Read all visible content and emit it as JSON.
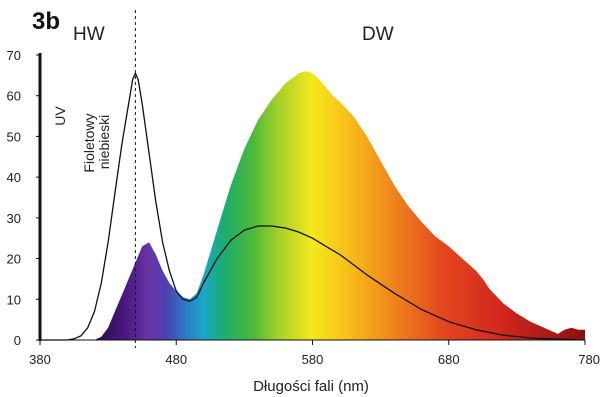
{
  "chart_data": {
    "type": "area",
    "panel_label": "3b",
    "xlabel": "Długości fali (nm)",
    "ylabel": "",
    "xlim": [
      380,
      780
    ],
    "ylim": [
      0,
      70
    ],
    "x_ticks": [
      380,
      480,
      580,
      680,
      780
    ],
    "y_ticks": [
      0,
      10,
      20,
      30,
      40,
      50,
      60,
      70
    ],
    "grid": false,
    "region_labels": [
      "HW",
      "DW"
    ],
    "band_labels": [
      "UV",
      "Fioletowy",
      "niebieski"
    ],
    "divider_x": 450,
    "series": [
      {
        "style": "spectrum-fill",
        "x": [
          420,
          425,
          430,
          435,
          440,
          445,
          450,
          455,
          460,
          465,
          470,
          475,
          480,
          485,
          490,
          495,
          500,
          510,
          520,
          530,
          540,
          550,
          560,
          570,
          575,
          580,
          585,
          590,
          595,
          600,
          610,
          620,
          630,
          640,
          650,
          660,
          670,
          680,
          690,
          700,
          705,
          710,
          720,
          730,
          740,
          750,
          760,
          765,
          770,
          775,
          780
        ],
        "values": [
          0,
          0.8,
          3,
          7,
          11,
          15,
          19,
          23,
          24,
          21,
          17,
          14,
          12,
          10.5,
          10,
          11.5,
          16,
          27,
          38,
          47,
          54,
          59,
          63,
          65.5,
          66,
          65.5,
          64,
          62,
          60,
          58.5,
          55,
          50,
          44,
          38,
          33,
          29,
          25.5,
          23,
          20,
          17,
          15,
          12.5,
          9,
          6.5,
          4.5,
          3,
          1.5,
          2.5,
          3,
          2.5,
          2.5
        ]
      },
      {
        "style": "line",
        "x": [
          380,
          395,
          400,
          405,
          410,
          415,
          420,
          425,
          430,
          435,
          440,
          445,
          448,
          450,
          452,
          455,
          460,
          465,
          470,
          475,
          480,
          485,
          490,
          495,
          500,
          510,
          520,
          530,
          540,
          550,
          560,
          570,
          580,
          590,
          600,
          620,
          640,
          660,
          680,
          700,
          720,
          740,
          760,
          780
        ],
        "values": [
          0,
          0,
          0,
          0.3,
          1,
          3,
          7,
          14,
          24,
          36,
          48,
          58,
          64,
          65.5,
          64,
          58,
          46,
          34,
          24,
          17,
          12,
          10,
          9.5,
          10.5,
          14,
          20,
          24.5,
          27,
          28,
          28,
          27.5,
          26.5,
          25,
          23,
          21,
          16,
          11.5,
          7.5,
          4.5,
          2.5,
          1.2,
          0.5,
          0.2,
          0
        ]
      }
    ]
  }
}
